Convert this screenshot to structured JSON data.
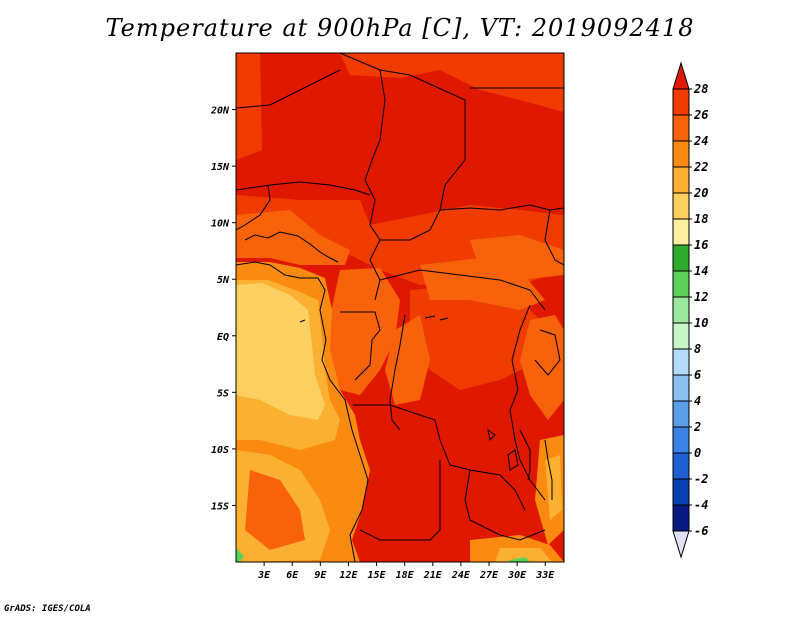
{
  "title": "Temperature at 900hPa [C], VT: 2019092418",
  "credit": "GrADS: IGES/COLA",
  "map": {
    "projection": "latlon",
    "lon_range": [
      0,
      35
    ],
    "lat_range": [
      -20,
      25
    ],
    "lat_ticks": [
      "20N",
      "15N",
      "10N",
      "5N",
      "EQ",
      "5S",
      "10S",
      "15S"
    ],
    "lon_ticks": [
      "3E",
      "6E",
      "9E",
      "12E",
      "15E",
      "18E",
      "21E",
      "24E",
      "27E",
      "30E",
      "33E"
    ]
  },
  "colorbar": {
    "levels": [
      "28",
      "26",
      "24",
      "22",
      "20",
      "18",
      "16",
      "14",
      "12",
      "10",
      "8",
      "6",
      "4",
      "2",
      "0",
      "-2",
      "-4",
      "-6"
    ],
    "colors": [
      "#e11800",
      "#f03c00",
      "#f8620a",
      "#fa8a10",
      "#fcb032",
      "#fcd060",
      "#fcf0a0",
      "#2faa2f",
      "#5ad25a",
      "#9ce89c",
      "#c8f5c8",
      "#b4dcf8",
      "#8cc0f0",
      "#5a9ee8",
      "#3c82e6",
      "#1e60d2",
      "#0a3fb4",
      "#081a82",
      "#e0e0f8"
    ]
  }
}
